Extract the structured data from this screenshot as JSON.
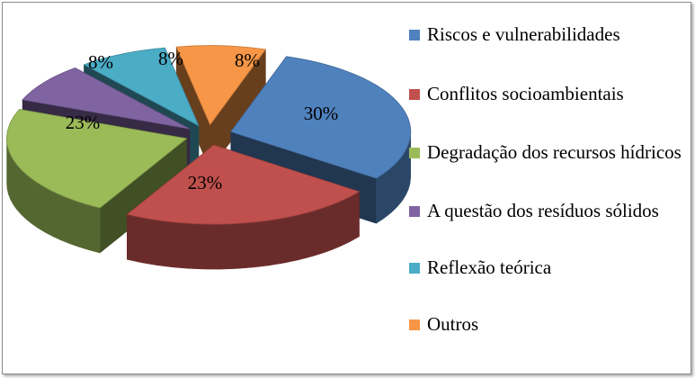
{
  "chart_data": {
    "type": "pie",
    "title": "",
    "slices": [
      {
        "label": "Riscos e vulnerabilidades",
        "value": 30,
        "display": "30%",
        "color": "#4F81BD"
      },
      {
        "label": "Conflitos socioambientais",
        "value": 23,
        "display": "23%",
        "color": "#C0504D"
      },
      {
        "label": "Degradação dos recursos hídricos",
        "value": 23,
        "display": "23%",
        "color": "#9BBB59"
      },
      {
        "label": "A questão dos resíduos sólidos",
        "value": 8,
        "display": "8%",
        "color": "#8064A2"
      },
      {
        "label": "Reflexão teórica",
        "value": 8,
        "display": "8%",
        "color": "#4BACC6"
      },
      {
        "label": "Outros",
        "value": 8,
        "display": "8%",
        "color": "#F79646"
      }
    ],
    "legend_position": "right",
    "style": "3d-exploded"
  },
  "legend": {
    "items": [
      {
        "label": "Riscos e vulnerabilidades",
        "color": "#4F81BD"
      },
      {
        "label": "Conflitos socioambientais",
        "color": "#C0504D"
      },
      {
        "label": "Degradação dos recursos hídricos",
        "color": "#9BBB59"
      },
      {
        "label": "A questão dos resíduos sólidos",
        "color": "#8064A2"
      },
      {
        "label": "Reflexão teórica",
        "color": "#4BACC6"
      },
      {
        "label": "Outros",
        "color": "#F79646"
      }
    ]
  }
}
